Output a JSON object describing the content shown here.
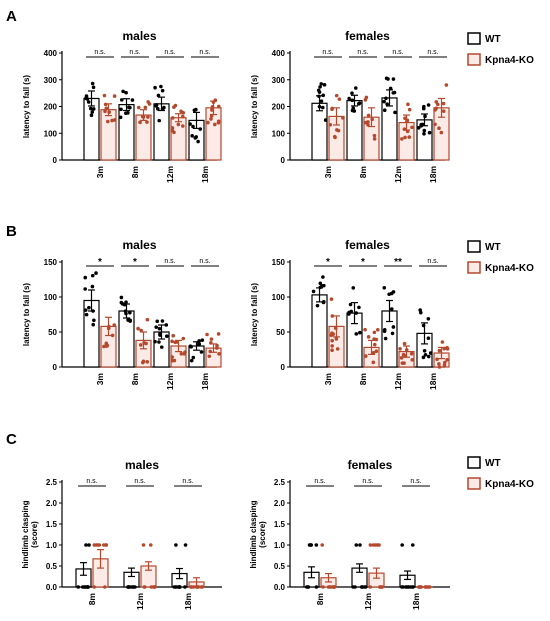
{
  "colors": {
    "wt": "#000000",
    "ko": "#b5492e",
    "ko_fill": "#fbeae6"
  },
  "legend": [
    {
      "label": "WT",
      "color": "#000000"
    },
    {
      "label": "Kpna4-KO",
      "color": "#b5492e"
    }
  ],
  "chart_data": [
    {
      "panel": "A",
      "title": "males",
      "type": "bar",
      "ylabel": "latency to fall (s)",
      "ylim": [
        0,
        400
      ],
      "yticks": [
        0,
        100,
        200,
        300,
        400
      ],
      "categories": [
        "3m",
        "8m",
        "12m",
        "18m"
      ],
      "series": [
        {
          "name": "WT",
          "values": [
            230,
            207,
            210,
            148
          ],
          "errors": [
            28,
            22,
            25,
            30
          ]
        },
        {
          "name": "Kpna4-KO",
          "values": [
            188,
            168,
            158,
            195
          ],
          "errors": [
            22,
            20,
            15,
            25
          ]
        }
      ],
      "significance": [
        "n.s.",
        "n.s.",
        "n.s.",
        "n.s."
      ]
    },
    {
      "panel": "A",
      "title": "females",
      "type": "bar",
      "ylabel": "latency to fall (s)",
      "ylim": [
        0,
        400
      ],
      "yticks": [
        0,
        100,
        200,
        300,
        400
      ],
      "categories": [
        "3m",
        "8m",
        "12m",
        "18m"
      ],
      "series": [
        {
          "name": "WT",
          "values": [
            212,
            222,
            232,
            150
          ],
          "errors": [
            28,
            20,
            30,
            22
          ]
        },
        {
          "name": "Kpna4-KO",
          "values": [
            163,
            160,
            140,
            195
          ],
          "errors": [
            32,
            35,
            28,
            35
          ]
        }
      ],
      "significance": [
        "n.s.",
        "n.s.",
        "n.s.",
        "n.s."
      ]
    },
    {
      "panel": "B",
      "title": "males",
      "type": "bar",
      "ylabel": "latency to fall (s)",
      "ylim": [
        0,
        150
      ],
      "yticks": [
        0,
        50,
        100,
        150
      ],
      "categories": [
        "3m",
        "8m",
        "12m",
        "18m"
      ],
      "series": [
        {
          "name": "WT",
          "values": [
            95,
            80,
            50,
            30
          ],
          "errors": [
            15,
            10,
            10,
            6
          ]
        },
        {
          "name": "Kpna4-KO",
          "values": [
            58,
            38,
            30,
            27
          ],
          "errors": [
            13,
            12,
            8,
            6
          ]
        }
      ],
      "significance": [
        "*",
        "*",
        "n.s.",
        "n.s."
      ]
    },
    {
      "panel": "B",
      "title": "females",
      "type": "bar",
      "ylabel": "latency to fall (s)",
      "ylim": [
        0,
        150
      ],
      "yticks": [
        0,
        50,
        100,
        150
      ],
      "categories": [
        "3m",
        "8m",
        "12m",
        "18m"
      ],
      "series": [
        {
          "name": "WT",
          "values": [
            103,
            77,
            80,
            48
          ],
          "errors": [
            10,
            15,
            15,
            15
          ]
        },
        {
          "name": "Kpna4-KO",
          "values": [
            58,
            28,
            22,
            20
          ],
          "errors": [
            15,
            10,
            8,
            8
          ]
        }
      ],
      "significance": [
        "*",
        "*",
        "**",
        "n.s."
      ]
    },
    {
      "panel": "C",
      "title": "males",
      "type": "bar",
      "ylabel": "hindlimb clasping (score)",
      "ylim": [
        0,
        2.5
      ],
      "yticks": [
        0.0,
        0.5,
        1.0,
        1.5,
        2.0,
        2.5
      ],
      "categories": [
        "8m",
        "12m",
        "18m"
      ],
      "series": [
        {
          "name": "WT",
          "values": [
            0.43,
            0.35,
            0.32
          ],
          "errors": [
            0.15,
            0.1,
            0.12
          ]
        },
        {
          "name": "Kpna4-KO",
          "values": [
            0.67,
            0.5,
            0.12
          ],
          "errors": [
            0.22,
            0.1,
            0.1
          ]
        }
      ],
      "significance": [
        "n.s.",
        "n.s.",
        "n.s."
      ]
    },
    {
      "panel": "C",
      "title": "females",
      "type": "bar",
      "ylabel": "hindlimb clasping (score)",
      "ylim": [
        0,
        2.5
      ],
      "yticks": [
        0.0,
        0.5,
        1.0,
        1.5,
        2.0,
        2.5
      ],
      "categories": [
        "8m",
        "12m",
        "18m"
      ],
      "series": [
        {
          "name": "WT",
          "values": [
            0.35,
            0.45,
            0.28
          ],
          "errors": [
            0.13,
            0.1,
            0.1
          ]
        },
        {
          "name": "Kpna4-KO",
          "values": [
            0.22,
            0.33,
            0.0
          ],
          "errors": [
            0.1,
            0.12,
            0.0
          ]
        }
      ],
      "significance": [
        "n.s.",
        "n.s.",
        "n.s."
      ]
    }
  ]
}
